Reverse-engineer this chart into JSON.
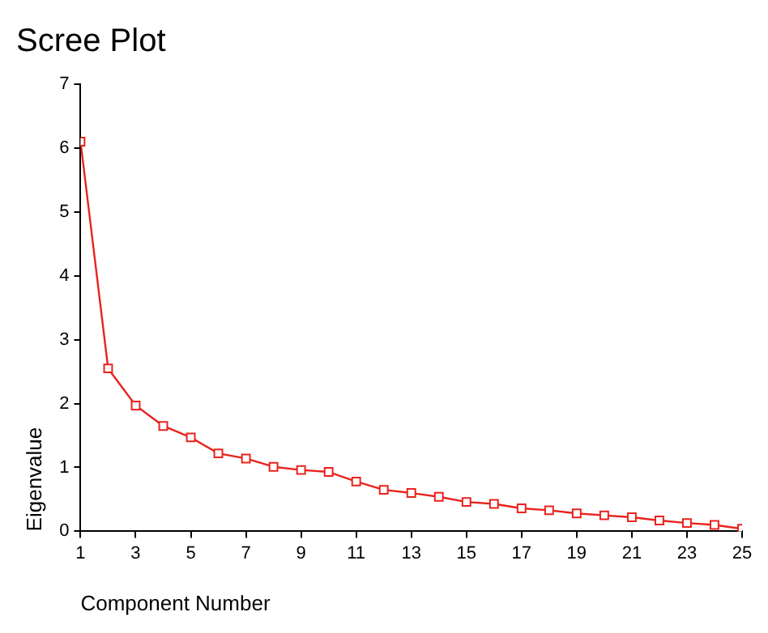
{
  "chart_data": {
    "type": "line",
    "title": "Scree Plot",
    "xlabel": "Component Number",
    "ylabel": "Eigenvalue",
    "x": [
      1,
      2,
      3,
      4,
      5,
      6,
      7,
      8,
      9,
      10,
      11,
      12,
      13,
      14,
      15,
      16,
      17,
      18,
      19,
      20,
      21,
      22,
      23,
      24,
      25
    ],
    "series": [
      {
        "color": "#e8231e",
        "values": [
          6.1,
          2.55,
          1.97,
          1.65,
          1.47,
          1.22,
          1.14,
          1.01,
          0.96,
          0.93,
          0.78,
          0.65,
          0.6,
          0.54,
          0.46,
          0.43,
          0.36,
          0.33,
          0.28,
          0.25,
          0.22,
          0.17,
          0.13,
          0.1,
          0.04
        ]
      }
    ],
    "xlim": [
      1,
      25
    ],
    "xticks": [
      1,
      3,
      5,
      7,
      9,
      11,
      13,
      15,
      17,
      19,
      21,
      23,
      25
    ],
    "ylim": [
      0,
      7
    ],
    "yticks": [
      0,
      1,
      2,
      3,
      4,
      5,
      6,
      7
    ],
    "grid": false,
    "legend": false,
    "marker": "square",
    "line_style": "solid"
  }
}
